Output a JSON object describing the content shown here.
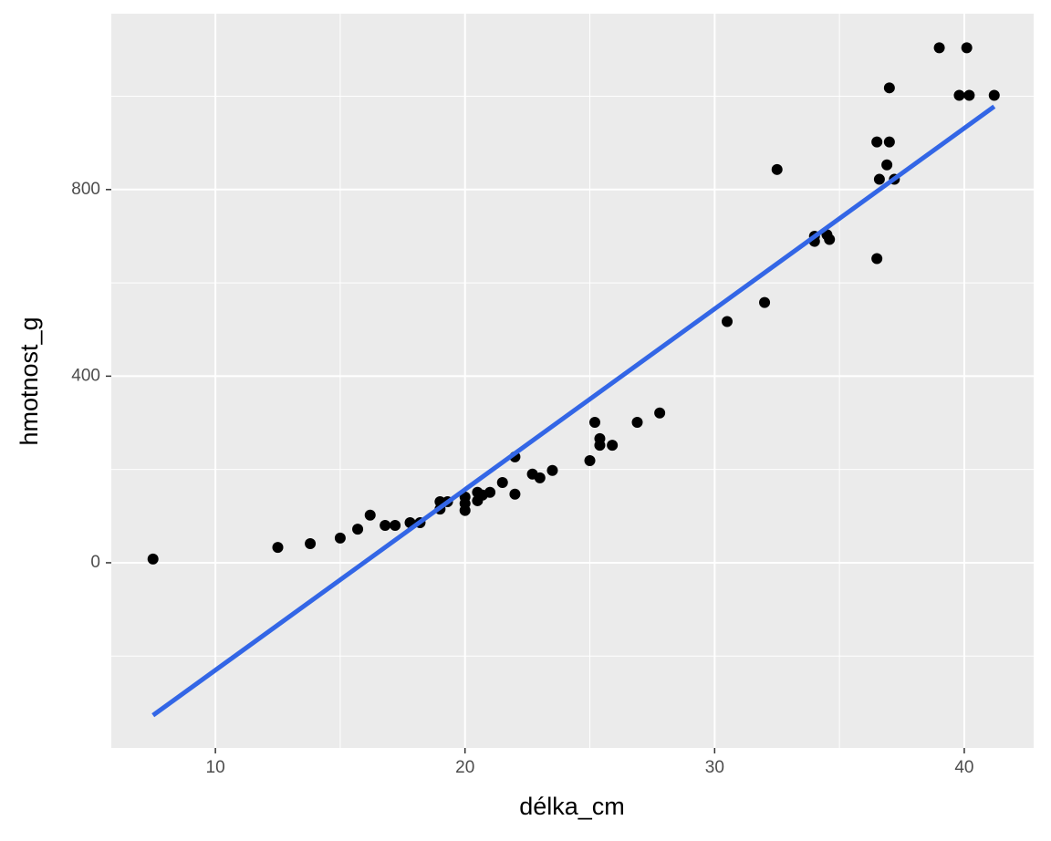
{
  "chart_data": {
    "type": "scatter",
    "x_label": "délka_cm",
    "y_label": "hmotnost_g",
    "x": [
      7.5,
      12.5,
      13.8,
      15.0,
      15.7,
      16.2,
      16.8,
      17.2,
      17.8,
      18.2,
      19.0,
      19.0,
      19.3,
      20.0,
      20.0,
      20.0,
      20.5,
      20.5,
      20.7,
      21.0,
      21.5,
      22.0,
      22.0,
      22.7,
      23.0,
      23.5,
      25.0,
      25.2,
      25.4,
      25.4,
      25.9,
      26.9,
      27.8,
      30.5,
      32.0,
      32.5,
      34.0,
      34.0,
      34.5,
      34.6,
      36.5,
      36.5,
      36.6,
      37.0,
      36.9,
      37.0,
      37.2,
      39.0,
      39.8,
      40.1,
      40.2,
      41.2
    ],
    "y": [
      8,
      33,
      41,
      53,
      72,
      102,
      80,
      80,
      86,
      86,
      115,
      131,
      131,
      141,
      127,
      112,
      151,
      133,
      145,
      151,
      172,
      147,
      227,
      190,
      182,
      198,
      219,
      301,
      266,
      252,
      252,
      301,
      321,
      517,
      558,
      843,
      700,
      689,
      703,
      693,
      652,
      902,
      822,
      902,
      853,
      1018,
      822,
      1104,
      1002,
      1104,
      1002,
      1002
    ],
    "color": "#000000",
    "fit_line": {
      "x": [
        7.5,
        41.2
      ],
      "y": [
        -327,
        978
      ],
      "color": "#3366e6"
    },
    "xlim": [
      5.83,
      42.78
    ],
    "ylim": [
      -397,
      1177
    ],
    "xticks": [
      10,
      20,
      30,
      40
    ],
    "yticks": [
      0,
      400,
      800
    ],
    "x_minor_ticks": [
      15,
      25,
      35
    ],
    "y_minor_ticks": [
      -200,
      200,
      600,
      1000
    ],
    "grid": true
  }
}
